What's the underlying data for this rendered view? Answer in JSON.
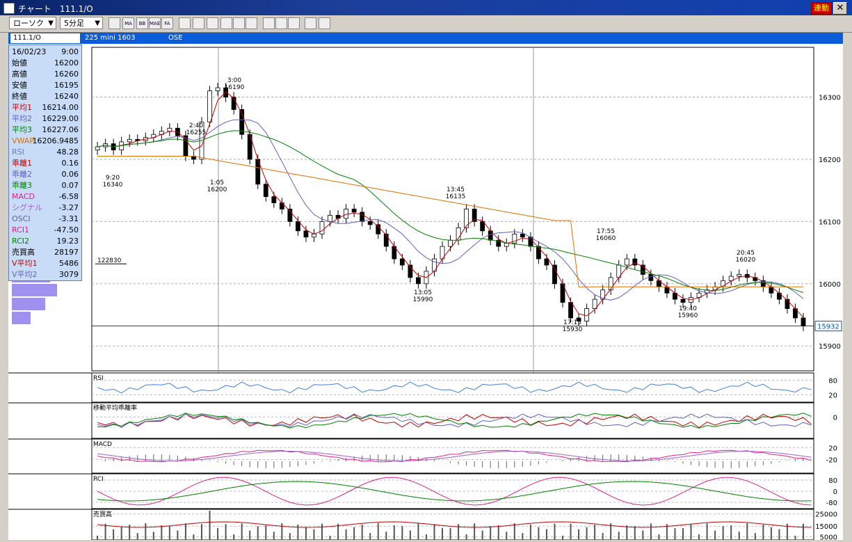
{
  "window": {
    "title": "チャート　111.1/O",
    "link_label": "連動",
    "close_label": "✕"
  },
  "toolbar": {
    "chart_style": "ローソク",
    "interval": "5分足",
    "icons": [
      "chart-settings-icon",
      "ma-icon",
      "bb-icon",
      "mae-icon",
      "fa-icon",
      "line-icon",
      "crosshair-icon",
      "draw-icon",
      "zoom-icon",
      "calc-icon",
      "trend-icon",
      "pen-icon",
      "cursor-icon",
      "eraser-icon",
      "search-icon",
      "erase-all-icon"
    ],
    "icon_labels": [
      "",
      "MA",
      "BB",
      "MAE",
      "FA",
      "",
      "",
      "",
      "",
      "",
      "",
      "",
      "",
      "",
      "",
      ""
    ]
  },
  "infobar": {
    "symbol": "111.1/O",
    "name": "225 mini 1603",
    "exchange": "OSE"
  },
  "datapanel": [
    {
      "k": "16/02/23",
      "v": "9:00",
      "c": "#000"
    },
    {
      "k": "始値",
      "v": "16200",
      "c": "#000"
    },
    {
      "k": "高値",
      "v": "16260",
      "c": "#000"
    },
    {
      "k": "安値",
      "v": "16195",
      "c": "#000"
    },
    {
      "k": "終値",
      "v": "16240",
      "c": "#000"
    },
    {
      "k": "平均1",
      "v": "16214.00",
      "c": "#c00000"
    },
    {
      "k": "平均2",
      "v": "16229.00",
      "c": "#6060c0"
    },
    {
      "k": "平均3",
      "v": "16227.06",
      "c": "#008000"
    },
    {
      "k": "VWAP",
      "v": "16206.9485",
      "c": "#e07000"
    },
    {
      "k": "RSI",
      "v": "48.28",
      "c": "#6080c0"
    },
    {
      "k": "乖離1",
      "v": "0.16",
      "c": "#c00000"
    },
    {
      "k": "乖離2",
      "v": "0.06",
      "c": "#6060c0"
    },
    {
      "k": "乖離3",
      "v": "0.07",
      "c": "#008000"
    },
    {
      "k": "MACD",
      "v": "-6.58",
      "c": "#e0208a"
    },
    {
      "k": "シグナル",
      "v": "-3.27",
      "c": "#a060d0"
    },
    {
      "k": "OSCI",
      "v": "-3.31",
      "c": "#6060a0"
    },
    {
      "k": "RCI1",
      "v": "-47.50",
      "c": "#e0208a"
    },
    {
      "k": "RCI2",
      "v": "19.23",
      "c": "#008000"
    },
    {
      "k": "売買高",
      "v": "28197",
      "c": "#000"
    },
    {
      "k": "V平均1",
      "v": "5486",
      "c": "#c00000"
    },
    {
      "k": "V平均2",
      "v": "3079",
      "c": "#6060c0"
    }
  ],
  "colors": {
    "ma1": "#c00000",
    "ma2": "#6060c0",
    "ma3": "#008000",
    "vwap": "#e07000",
    "rsi": "#4080e0",
    "macd": "#e0208a",
    "signal": "#a060d0",
    "rci1": "#e0208a",
    "rci2": "#008000",
    "current": "#0050c0"
  },
  "main_chart": {
    "y_ticks": [
      "16300",
      "16200",
      "16100",
      "16000",
      "15900"
    ],
    "current_price": "15932",
    "volume_profile_label": "122830",
    "annotations": [
      {
        "t": "9:20",
        "p": "16340"
      },
      {
        "t": "2:40",
        "p": "16255"
      },
      {
        "t": "1:05",
        "p": "16200"
      },
      {
        "t": "3:00",
        "p": "16190"
      },
      {
        "t": "13:45",
        "p": "16135"
      },
      {
        "t": "13:05",
        "p": "15990"
      },
      {
        "t": "17:55",
        "p": "16060"
      },
      {
        "t": "17:15",
        "p": "15930"
      },
      {
        "t": "20:45",
        "p": "16020"
      },
      {
        "t": "19:40",
        "p": "15960"
      }
    ]
  },
  "panels": {
    "rsi": {
      "label": "RSI",
      "ticks": [
        "80",
        "20"
      ]
    },
    "kairi": {
      "label": "移動平均乖離率",
      "ticks": [
        "0"
      ]
    },
    "macd": {
      "label": "MACD",
      "ticks": [
        "20",
        "-20"
      ]
    },
    "rci": {
      "label": "RCI",
      "ticks": [
        "80",
        "0",
        "-80"
      ]
    },
    "volume": {
      "label": "売買高",
      "ticks": [
        "25000",
        "15000",
        "5000"
      ]
    }
  },
  "chart_data": {
    "type": "candlestick",
    "symbol": "111.1/O",
    "interval": "5分足",
    "ylim": [
      15860,
      16380
    ],
    "y_ticks": [
      16300,
      16200,
      16100,
      16000,
      15900
    ],
    "marked_points": [
      {
        "time": "1:05",
        "price": 16200
      },
      {
        "time": "2:40",
        "price": 16255
      },
      {
        "time": "3:00",
        "price": 16190
      },
      {
        "time": "9:20",
        "price": 16340
      },
      {
        "time": "13:05",
        "price": 15990
      },
      {
        "time": "13:45",
        "price": 16135
      },
      {
        "time": "17:15",
        "price": 15930
      },
      {
        "time": "17:55",
        "price": 16060
      },
      {
        "time": "19:40",
        "price": 15960
      },
      {
        "time": "20:45",
        "price": 16020
      }
    ],
    "close_path": [
      16220,
      16225,
      16215,
      16228,
      16232,
      16230,
      16235,
      16240,
      16245,
      16250,
      16238,
      16205,
      16200,
      16260,
      16310,
      16315,
      16300,
      16280,
      16240,
      16200,
      16160,
      16140,
      16130,
      16120,
      16100,
      16085,
      16075,
      16080,
      16100,
      16110,
      16105,
      16120,
      16115,
      16100,
      16095,
      16080,
      16060,
      16040,
      16030,
      16010,
      16000,
      16020,
      16040,
      16060,
      16070,
      16090,
      16120,
      16100,
      16085,
      16070,
      16060,
      16065,
      16080,
      16075,
      16060,
      16040,
      16030,
      16000,
      15970,
      15945,
      15940,
      15960,
      15975,
      15990,
      16010,
      16030,
      16040,
      16030,
      16015,
      16005,
      15995,
      15985,
      15975,
      15970,
      15978,
      15985,
      15990,
      15995,
      16005,
      16012,
      16015,
      16010,
      16005,
      15995,
      15985,
      15975,
      15960,
      15945,
      15932
    ],
    "volume_current": 28197
  }
}
